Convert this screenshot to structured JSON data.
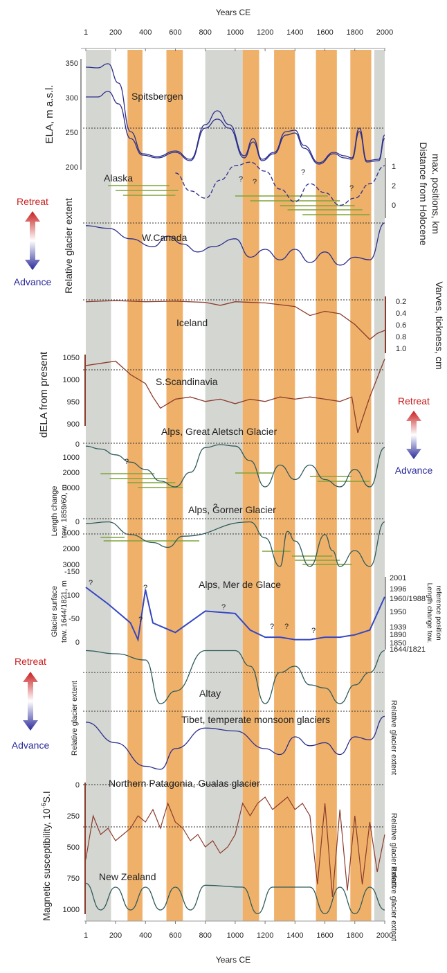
{
  "colors": {
    "grey_band": "#d4d6d2",
    "orange_band": "#efb16a",
    "blue_line": "#2b2d8c",
    "mdg_line": "#3446c4",
    "brown_line": "#8b3a2a",
    "teal_line": "#2e5a5a",
    "green_bars": "#7ea43a",
    "retreat": "#c81e1e",
    "advance": "#2a2a9a"
  },
  "top_axis": {
    "title": "Years CE",
    "ticks": [
      "1",
      "200",
      "400",
      "600",
      "800",
      "1000",
      "1200",
      "1400",
      "1600",
      "1800",
      "2000"
    ]
  },
  "bottom_axis": {
    "title": "Years CE",
    "ticks": [
      "1",
      "200",
      "400",
      "600",
      "800",
      "1000",
      "1200",
      "1400",
      "1600",
      "1800",
      "2000"
    ]
  },
  "bands": {
    "grey": [
      [
        1,
        170
      ],
      [
        800,
        1050
      ],
      [
        1930,
        2000
      ]
    ],
    "orange": [
      [
        280,
        380
      ],
      [
        540,
        650
      ],
      [
        1050,
        1160
      ],
      [
        1260,
        1400
      ],
      [
        1540,
        1680
      ],
      [
        1770,
        1910
      ]
    ]
  },
  "legend_top": {
    "retreat": "Retreat",
    "advance": "Advance"
  },
  "legend_mid": {
    "retreat": "Retreat",
    "advance": "Advance"
  },
  "legend_low": {
    "retreat": "Retreat",
    "advance": "Advance"
  },
  "panels": {
    "spitsbergen": {
      "name": "Spitsbergen",
      "ylabel": "ELA, m a.s.l.",
      "ticks": [
        "350",
        "300",
        "250",
        "200"
      ]
    },
    "alaska": {
      "name": "Alaska",
      "right_label_1": "Distance from Holocene",
      "right_label_2": "max. positions, km",
      "ticks": [
        "1",
        "2",
        "0"
      ],
      "marks": [
        "?",
        "?",
        "?",
        "?"
      ]
    },
    "wcanada": {
      "name": "W.Canada",
      "ylabel": "Relative glacier extent"
    },
    "iceland": {
      "name": "Iceland",
      "right_label": "Varves, tickness, cm",
      "ticks": [
        "0.2",
        "0.4",
        "0.6",
        "0.8",
        "1.0"
      ]
    },
    "sscandinavia": {
      "name": "S.Scandinavia",
      "ylabel": "dELA from present",
      "ticks": [
        "1050",
        "1000",
        "950",
        "900"
      ]
    },
    "aletsch": {
      "name": "Alps, Great Aletsch Glacier",
      "ylabel_1": "Length change",
      "ylabel_2": "tow. 1859/60, m",
      "ticks": [
        "0",
        "1000",
        "2000",
        "3000"
      ],
      "marks": [
        "?",
        "?"
      ]
    },
    "gorner": {
      "name": "Alps, Gorner Glacier",
      "ticks": [
        "0",
        "1000",
        "2000",
        "3000"
      ]
    },
    "merdeglace": {
      "name": "Alps, Mer de Glace",
      "ylabel_1": "Glacier surface",
      "ylabel_2": "tow. 1644/1821, m",
      "ticks": [
        "-150",
        "-100",
        "-50",
        "0"
      ],
      "right_label_1": "Length change tow.",
      "right_label_2": "reference position",
      "right_ticks": [
        "2001",
        "1996",
        "1960/1988",
        "1950",
        "1939",
        "1890",
        "1850",
        "1644/1821"
      ],
      "marks": [
        "?",
        "?",
        "?",
        "?",
        "?",
        "?",
        "?"
      ]
    },
    "altay": {
      "name": "Altay"
    },
    "tibet": {
      "name": "Tibet, temperate monsoon glaciers",
      "ylabel": "Relative glacier extent",
      "right_label": "Relative glacier extent"
    },
    "patagonia": {
      "name": "Northern Patagonia, Gualas glacier",
      "ylabel": "Magnetic susceptibility, 10",
      "ylabel_exp": "-6",
      "ylabel_unit": "S.I",
      "ticks": [
        "0",
        "250",
        "500",
        "750",
        "1000"
      ],
      "right_label": "Relative glacier extent"
    },
    "newzealand": {
      "name": "New Zealand",
      "right_label": "Relative glacier extent"
    }
  },
  "chart_data": [
    {
      "type": "line",
      "title": "Spitsbergen",
      "ylabel": "ELA, m a.s.l.",
      "ylim": [
        200,
        350
      ],
      "series": [
        {
          "x": [
            1,
            80,
            150,
            220,
            300,
            380,
            480,
            600,
            700,
            800,
            880,
            960,
            1060,
            1120,
            1180,
            1260,
            1340,
            1400,
            1460,
            1560,
            1660,
            1730,
            1780,
            1830,
            1880,
            1960,
            2000
          ],
          "values": [
            343,
            342,
            348,
            320,
            250,
            218,
            214,
            222,
            210,
            260,
            280,
            260,
            215,
            240,
            210,
            220,
            250,
            252,
            230,
            205,
            220,
            215,
            212,
            255,
            208,
            210,
            245
          ]
        },
        {
          "x": [
            1,
            80,
            150,
            220,
            300,
            380,
            480,
            600,
            700,
            800,
            880,
            960,
            1060,
            1120,
            1180,
            1260,
            1340,
            1400,
            1460,
            1560,
            1660,
            1730,
            1780,
            1830,
            1880,
            1960,
            2000
          ],
          "values": [
            300,
            300,
            308,
            290,
            240,
            216,
            212,
            220,
            208,
            255,
            268,
            255,
            212,
            235,
            208,
            218,
            245,
            248,
            226,
            203,
            218,
            212,
            210,
            250,
            206,
            208,
            240
          ]
        }
      ],
      "reference_line": 255
    },
    {
      "type": "line",
      "title": "Alaska",
      "ylabel": "Distance from Holocene max. positions, km",
      "ylim": [
        -0.3,
        1.3
      ],
      "x": [
        600,
        700,
        800,
        900,
        1000,
        1100,
        1200,
        1300,
        1400,
        1500,
        1600,
        1700,
        1800,
        1900,
        2000
      ],
      "values": [
        0.9,
        0.4,
        0.2,
        0.7,
        1.1,
        1.2,
        0.95,
        0.45,
        0.1,
        0.6,
        0.35,
        0.0,
        0.2,
        0.6,
        1.1
      ]
    },
    {
      "type": "line",
      "title": "W.Canada",
      "ylabel": "Relative glacier extent",
      "x": [
        1,
        150,
        300,
        450,
        550,
        650,
        750,
        850,
        1000,
        1100,
        1200,
        1300,
        1400,
        1500,
        1600,
        1700,
        1800,
        1900,
        2000
      ],
      "values": [
        0.95,
        0.9,
        0.7,
        0.55,
        0.75,
        0.6,
        0.45,
        0.55,
        0.7,
        0.35,
        0.5,
        0.3,
        0.5,
        0.25,
        0.45,
        0.2,
        0.35,
        0.3,
        1.0
      ]
    },
    {
      "type": "line",
      "title": "Iceland",
      "ylabel": "Varves, tickness, cm",
      "ylim": [
        0.2,
        1.0
      ],
      "x": [
        1,
        200,
        400,
        600,
        800,
        900,
        1000,
        1200,
        1400,
        1500,
        1600,
        1700,
        1800,
        1900,
        1950,
        2000
      ],
      "values": [
        0.22,
        0.2,
        0.22,
        0.21,
        0.23,
        0.28,
        0.22,
        0.24,
        0.3,
        0.45,
        0.38,
        0.42,
        0.6,
        0.85,
        0.75,
        0.7
      ]
    },
    {
      "type": "line",
      "title": "S.Scandinavia",
      "ylabel": "dELA from present",
      "ylim": [
        900,
        1050
      ],
      "x": [
        1,
        100,
        200,
        300,
        400,
        450,
        500,
        600,
        700,
        800,
        900,
        1000,
        1100,
        1200,
        1300,
        1400,
        1500,
        1600,
        1700,
        1780,
        1820,
        1900,
        2000
      ],
      "values": [
        1030,
        1035,
        1040,
        1010,
        990,
        960,
        935,
        955,
        960,
        950,
        955,
        945,
        955,
        950,
        960,
        955,
        960,
        955,
        950,
        960,
        880,
        960,
        1045
      ]
    },
    {
      "type": "line",
      "title": "Alps, Great Aletsch Glacier",
      "ylabel": "Length change tow. 1859/60, m",
      "ylim": [
        0,
        3000
      ],
      "x": [
        1,
        100,
        200,
        300,
        400,
        500,
        600,
        700,
        800,
        900,
        1000,
        1100,
        1200,
        1300,
        1400,
        1500,
        1600,
        1700,
        1800,
        1900,
        2000
      ],
      "values": [
        200,
        400,
        800,
        1300,
        1800,
        2600,
        3000,
        2000,
        300,
        100,
        200,
        1200,
        3000,
        1500,
        2500,
        1500,
        2500,
        3000,
        1800,
        3000,
        300
      ]
    },
    {
      "type": "line",
      "title": "Alps, Gorner Glacier",
      "ylabel": "Length change tow. 1859/60, m",
      "ylim": [
        0,
        3000
      ],
      "x": [
        1,
        150,
        300,
        450,
        550,
        650,
        1100,
        1200,
        1300,
        1350,
        1400,
        1500,
        1600,
        1650,
        1700,
        1800,
        1900,
        2000
      ],
      "values": [
        300,
        200,
        1000,
        1500,
        1800,
        1100,
        200,
        1200,
        3000,
        800,
        1400,
        3000,
        1000,
        2000,
        3000,
        2000,
        3000,
        200
      ]
    },
    {
      "type": "line",
      "title": "Alps, Mer de Glace",
      "ylabel": "Glacier surface tow. 1644/1821, m",
      "ylim": [
        0,
        -150
      ],
      "x": [
        1,
        150,
        300,
        350,
        400,
        450,
        600,
        800,
        1000,
        1100,
        1200,
        1300,
        1400,
        1500,
        1600,
        1700,
        1800,
        1900,
        2000
      ],
      "values": [
        -115,
        -80,
        -40,
        -5,
        -110,
        -40,
        -20,
        -65,
        -60,
        -25,
        -10,
        -10,
        -5,
        -5,
        -10,
        -10,
        -15,
        -25,
        -95
      ]
    },
    {
      "type": "line",
      "title": "Altay",
      "ylabel": "Relative glacier extent",
      "x": [
        1,
        200,
        400,
        500,
        600,
        800,
        1000,
        1100,
        1200,
        1300,
        1400,
        1500,
        1600,
        1700,
        1800,
        1900,
        2000
      ],
      "values": [
        0.95,
        0.9,
        0.8,
        0.1,
        0.3,
        0.95,
        0.95,
        0.7,
        0.1,
        0.6,
        0.7,
        0.4,
        0.35,
        0.1,
        0.4,
        0.6,
        0.95
      ]
    },
    {
      "type": "line",
      "title": "Tibet, temperate monsoon glaciers",
      "ylabel": "Relative glacier extent",
      "x": [
        1,
        200,
        400,
        500,
        600,
        800,
        1000,
        1200,
        1300,
        1400,
        1500,
        1600,
        1700,
        1800,
        1900,
        2000
      ],
      "values": [
        0.85,
        0.5,
        0.1,
        0.05,
        0.4,
        0.75,
        0.7,
        0.4,
        0.3,
        0.6,
        0.45,
        0.5,
        0.3,
        0.6,
        0.55,
        0.95
      ]
    },
    {
      "type": "line",
      "title": "Northern Patagonia, Gualas glacier",
      "ylabel": "Magnetic susceptibility, 10-6 S.I",
      "ylim": [
        1000,
        0
      ],
      "x": [
        1,
        50,
        100,
        150,
        200,
        250,
        300,
        350,
        400,
        450,
        500,
        550,
        600,
        650,
        700,
        750,
        800,
        850,
        900,
        950,
        1000,
        1050,
        1100,
        1150,
        1200,
        1250,
        1300,
        1350,
        1400,
        1450,
        1500,
        1550,
        1600,
        1650,
        1700,
        1750,
        1800,
        1850,
        1900,
        1950,
        2000
      ],
      "values": [
        600,
        250,
        400,
        350,
        450,
        400,
        350,
        250,
        300,
        200,
        350,
        150,
        300,
        350,
        450,
        400,
        500,
        450,
        550,
        500,
        400,
        150,
        250,
        150,
        100,
        200,
        150,
        100,
        200,
        150,
        250,
        800,
        150,
        900,
        200,
        850,
        250,
        800,
        300,
        700,
        400
      ]
    },
    {
      "type": "line",
      "title": "New Zealand",
      "ylabel": "Relative glacier extent",
      "x": [
        1,
        100,
        200,
        300,
        400,
        500,
        600,
        700,
        800,
        1050,
        1150,
        1250,
        1500,
        1600,
        1700,
        1800,
        1900,
        2000
      ],
      "values": [
        0.9,
        0.2,
        0.8,
        0.2,
        0.8,
        0.2,
        0.8,
        0.2,
        0.85,
        0.8,
        0.1,
        0.8,
        0.8,
        0.1,
        0.8,
        0.1,
        0.8,
        0.2
      ]
    }
  ]
}
